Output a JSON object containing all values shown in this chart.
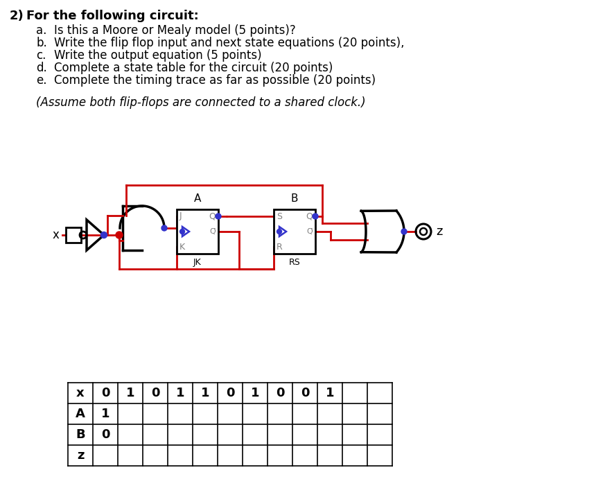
{
  "bg_color": "#ffffff",
  "text_color": "#000000",
  "red_wire": "#cc0000",
  "blue_dot": "#3333cc",
  "title_number": "2)",
  "title_text": "For the following circuit:",
  "items": [
    [
      "a.",
      "Is this a Moore or Mealy model (5 points)?"
    ],
    [
      "b.",
      "Write the flip flop input and next state equations (20 points),"
    ],
    [
      "c.",
      "Write the output equation (5 points)"
    ],
    [
      "d.",
      "Complete a state table for the circuit (20 points)"
    ],
    [
      "e.",
      "Complete the timing trace as far as possible (20 points)"
    ]
  ],
  "note": "(Assume both flip-flops are connected to a shared clock.)",
  "table_x_values": [
    "x",
    "0",
    "1",
    "0",
    "1",
    "1",
    "0",
    "1",
    "0",
    "0",
    "1",
    "",
    ""
  ],
  "table_rows": [
    "x",
    "A",
    "B",
    "z"
  ],
  "table_row_init": [
    "",
    "1",
    "0",
    ""
  ],
  "num_cols": 13
}
